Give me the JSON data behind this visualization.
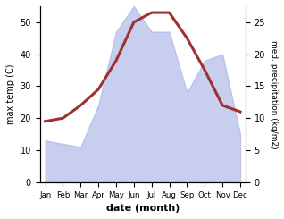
{
  "months": [
    "Jan",
    "Feb",
    "Mar",
    "Apr",
    "May",
    "Jun",
    "Jul",
    "Aug",
    "Sep",
    "Oct",
    "Nov",
    "Dec"
  ],
  "month_indices": [
    0,
    1,
    2,
    3,
    4,
    5,
    6,
    7,
    8,
    9,
    10,
    11
  ],
  "temperature": [
    19,
    20,
    24,
    29,
    38,
    50,
    53,
    53,
    45,
    35,
    24,
    22
  ],
  "precipitation": [
    13,
    12,
    11,
    24,
    47,
    55,
    47,
    47,
    28,
    38,
    40,
    15
  ],
  "temp_color": "#a03030",
  "precip_fill_color": "#aab4e6",
  "precip_alpha": 0.65,
  "temp_ylim": [
    0,
    55
  ],
  "precip_ylim": [
    0,
    27.5
  ],
  "temp_yticks": [
    0,
    10,
    20,
    30,
    40,
    50
  ],
  "precip_yticks": [
    0,
    5,
    10,
    15,
    20,
    25
  ],
  "xlabel": "date (month)",
  "ylabel_left": "max temp (C)",
  "ylabel_right": "med. precipitation (kg/m2)",
  "linewidth": 2.2,
  "spine_color": "#888888"
}
